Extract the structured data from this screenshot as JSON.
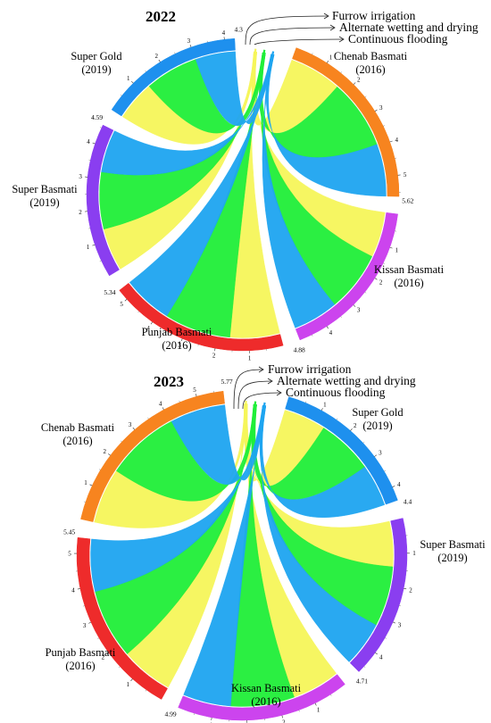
{
  "chart_data": [
    {
      "type": "chord",
      "title": "2022",
      "legend": [
        "Furrow irrigation",
        "Alternate wetting and drying",
        "Continuous flooding"
      ],
      "ribbon_colors": {
        "Furrow irrigation": "#f5f55a",
        "Alternate wetting and drying": "#20ee38",
        "Continuous flooding": "#1ea4f0"
      },
      "varieties": [
        {
          "name": "Chenab Basmati",
          "year": "(2016)",
          "total": 5.62,
          "total_label": "5.62",
          "color": "#f7841f",
          "ticks": [
            "1",
            "2",
            "3",
            "4",
            "5"
          ]
        },
        {
          "name": "Kissan Basmati",
          "year": "(2016)",
          "total": 4.88,
          "total_label": "4.88",
          "color": "#cc44ee",
          "ticks": [
            "1",
            "2",
            "3",
            "4"
          ]
        },
        {
          "name": "Punjab Basmati",
          "year": "(2016)",
          "total": 5.34,
          "total_label": "5.34",
          "color": "#ee2b2b",
          "ticks": [
            "1",
            "2",
            "3",
            "4",
            "5"
          ]
        },
        {
          "name": "Super Basmati",
          "year": "(2019)",
          "total": 4.59,
          "total_label": "4.59",
          "color": "#8a3ef0",
          "ticks": [
            "1",
            "2",
            "3",
            "4"
          ]
        },
        {
          "name": "Super Gold",
          "year": "(2019)",
          "total": 4.3,
          "total_label": "4.3",
          "color": "#1e90ee",
          "ticks": [
            "1",
            "2",
            "3",
            "4"
          ]
        }
      ]
    },
    {
      "type": "chord",
      "title": "2023",
      "legend": [
        "Furrow irrigation",
        "Alternate wetting and drying",
        "Continuous flooding"
      ],
      "ribbon_colors": {
        "Furrow irrigation": "#f5f55a",
        "Alternate wetting and drying": "#20ee38",
        "Continuous flooding": "#1ea4f0"
      },
      "varieties": [
        {
          "name": "Super Gold",
          "year": "(2019)",
          "total": 4.4,
          "total_label": "4.4",
          "color": "#1e90ee",
          "ticks": [
            "1",
            "2",
            "3",
            "4"
          ]
        },
        {
          "name": "Super Basmati",
          "year": "(2019)",
          "total": 4.71,
          "total_label": "4.71",
          "color": "#8a3ef0",
          "ticks": [
            "1",
            "2",
            "3",
            "4"
          ]
        },
        {
          "name": "Kissan Basmati",
          "year": "(2016)",
          "total": 4.99,
          "total_label": "4.99",
          "color": "#cc44ee",
          "ticks": [
            "1",
            "2",
            "3",
            "4"
          ]
        },
        {
          "name": "Punjab Basmati",
          "year": "(2016)",
          "total": 5.45,
          "total_label": "5.45",
          "color": "#ee2b2b",
          "ticks": [
            "1",
            "2",
            "3",
            "4",
            "5"
          ]
        },
        {
          "name": "Chenab Basmati",
          "year": "(2016)",
          "total": 5.77,
          "total_label": "5.77",
          "color": "#f7841f",
          "ticks": [
            "1",
            "2",
            "3",
            "4",
            "5"
          ]
        }
      ]
    }
  ]
}
